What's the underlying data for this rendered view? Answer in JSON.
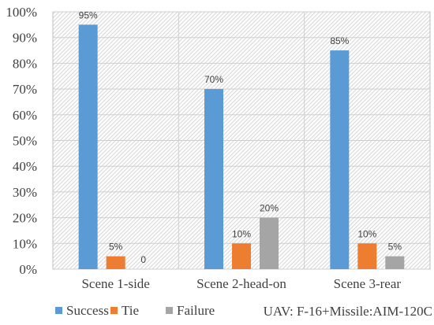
{
  "chart_data": {
    "type": "bar",
    "categories": [
      "Scene 1-side",
      "Scene 2-head-on",
      "Scene 3-rear"
    ],
    "series": [
      {
        "name": "Success",
        "values": [
          95,
          70,
          85
        ],
        "labels": [
          "95%",
          "70%",
          "85%"
        ],
        "color": "#5B9BD5"
      },
      {
        "name": "Tie",
        "values": [
          5,
          10,
          10
        ],
        "labels": [
          "5%",
          "10%",
          "10%"
        ],
        "color": "#ED7D31"
      },
      {
        "name": "Failure",
        "values": [
          0,
          20,
          5
        ],
        "labels": [
          "0",
          "20%",
          "5%"
        ],
        "color": "#A5A5A5"
      }
    ],
    "ylim": [
      0,
      100
    ],
    "yticks": [
      0,
      10,
      20,
      30,
      40,
      50,
      60,
      70,
      80,
      90,
      100
    ],
    "ytick_labels": [
      "0%",
      "10%",
      "20%",
      "30%",
      "40%",
      "50%",
      "60%",
      "70%",
      "80%",
      "90%",
      "100%"
    ],
    "grid": true,
    "legend": "bottom",
    "note": "UAV: F-16+Missile:AIM-120C",
    "title": "",
    "xlabel": "",
    "ylabel": ""
  }
}
